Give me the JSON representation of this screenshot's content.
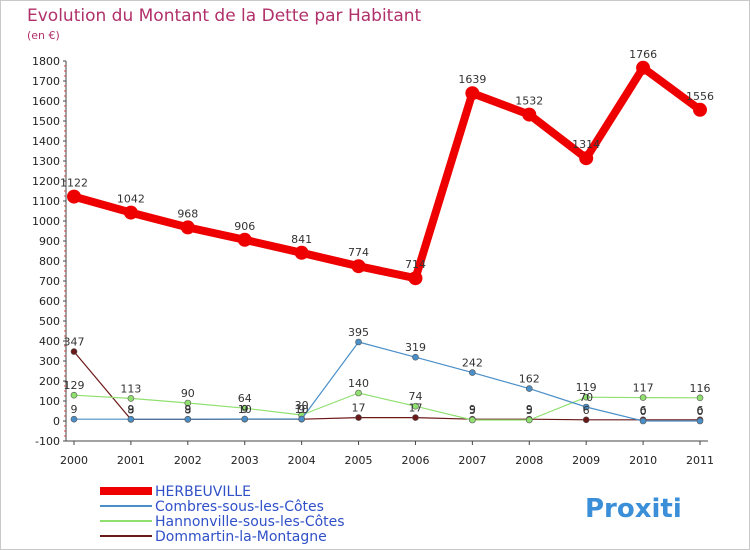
{
  "chart_data": {
    "type": "line",
    "title": "Evolution du Montant de la Dette par Habitant",
    "subtitle": "(en €)",
    "x": [
      "2000",
      "2001",
      "2002",
      "2003",
      "2004",
      "2005",
      "2006",
      "2007",
      "2008",
      "2009",
      "2010",
      "2011"
    ],
    "ylim": [
      -100,
      1800
    ],
    "yticks": [
      -100,
      0,
      100,
      200,
      300,
      400,
      500,
      600,
      700,
      800,
      900,
      1000,
      1100,
      1200,
      1300,
      1400,
      1500,
      1600,
      1700,
      1800
    ],
    "grid": false,
    "legend_position": "bottom-left",
    "series": [
      {
        "name": "HERBEUVILLE",
        "color": "#ee0000",
        "values": [
          1122,
          1042,
          968,
          906,
          841,
          774,
          714,
          1639,
          1532,
          1314,
          1766,
          1556
        ]
      },
      {
        "name": "Combres-sous-les-Côtes",
        "color": "#4a8fc8",
        "values": [
          9,
          9,
          9,
          10,
          10,
          395,
          319,
          242,
          162,
          70,
          0,
          0
        ]
      },
      {
        "name": "Hannonville-sous-les-Côtes",
        "color": "#90e070",
        "values": [
          129,
          113,
          90,
          64,
          30,
          140,
          74,
          5,
          5,
          119,
          117,
          116
        ]
      },
      {
        "name": "Dommartin-la-Montagne",
        "color": "#6b1818",
        "values": [
          347,
          8,
          8,
          9,
          9,
          17,
          17,
          9,
          9,
          6,
          6,
          6
        ]
      }
    ]
  },
  "logo": {
    "text": "Proxiti"
  }
}
